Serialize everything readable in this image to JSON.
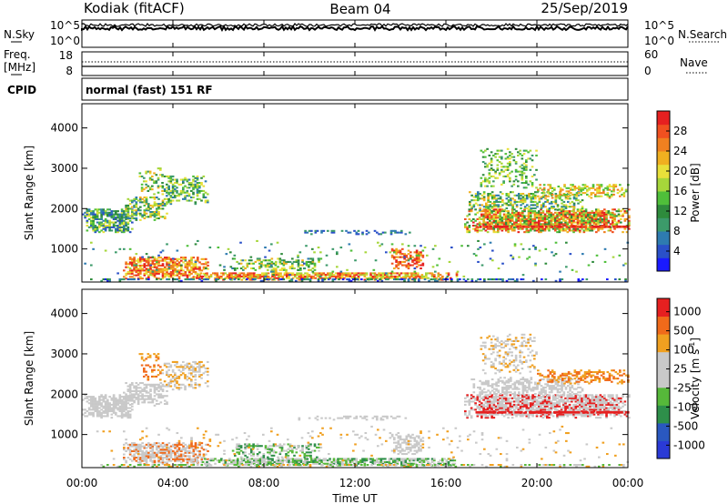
{
  "header": {
    "station": "Kodiak (fitACF)",
    "beam": "Beam 04",
    "date": "25/Sep/2019"
  },
  "nsky_panel": {
    "left_label": "N.Sky",
    "right_label": "N.Search",
    "left_ticks": [
      "10^5",
      "10^0"
    ],
    "right_ticks": [
      "10^5",
      "10^0"
    ]
  },
  "freq_panel": {
    "left_label_1": "Freq.",
    "left_label_2": "[MHz]",
    "right_label": "Nave",
    "left_ticks": [
      "18",
      "8"
    ],
    "right_ticks": [
      "60",
      "0"
    ]
  },
  "cpid": {
    "label": "CPID",
    "text": "normal (fast) 151 RF"
  },
  "chart_data": [
    {
      "type": "heatmap",
      "quantity": "power",
      "ylabel": "Slant Range [km]",
      "ylim": [
        180,
        4600
      ],
      "yticks": [
        "1000",
        "2000",
        "3000",
        "4000"
      ],
      "colorbar_label": "Power [dB]",
      "colorbar_ticks": [
        "4",
        "8",
        "12",
        "16",
        "20",
        "24",
        "28"
      ],
      "colorbar_colors": [
        "#1a1aff",
        "#2a50c8",
        "#2e7bb0",
        "#3c9a6a",
        "#2e8b3c",
        "#4fbf3a",
        "#a6d63a",
        "#e8e03a",
        "#f0b020",
        "#f08020",
        "#f05020",
        "#e62020"
      ]
    },
    {
      "type": "heatmap",
      "quantity": "velocity",
      "ylabel": "Slant Range [km]",
      "ylim": [
        180,
        4600
      ],
      "yticks": [
        "1000",
        "2000",
        "3000",
        "4000"
      ],
      "colorbar_label": "Velocity [m s",
      "colorbar_label_sup": "-1",
      "colorbar_ticks": [
        "1000",
        "500",
        "100",
        "25",
        "-25",
        "-100",
        "-500",
        "-1000"
      ],
      "colorbar_colors": [
        "#2a3ad6",
        "#2a58c0",
        "#2e8f4a",
        "#56b83a",
        "#c9c9c9",
        "#c9c9c9",
        "#f0a020",
        "#f06a1a",
        "#e62020"
      ]
    }
  ],
  "xaxis": {
    "label": "Time UT",
    "ticks": [
      "00:00",
      "04:00",
      "08:00",
      "12:00",
      "16:00",
      "20:00",
      "00:00"
    ],
    "xlim_hours": [
      0,
      24
    ]
  }
}
